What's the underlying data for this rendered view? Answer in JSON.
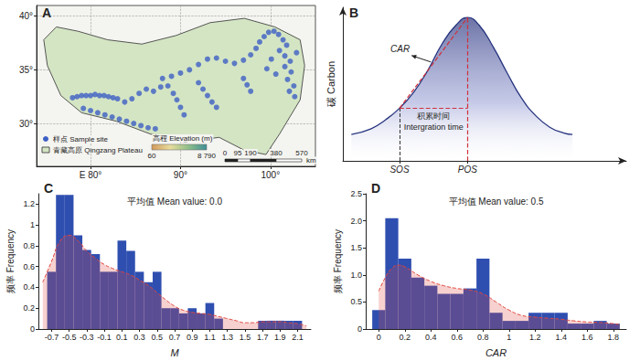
{
  "chart_data": [
    {
      "panel": "A",
      "type": "scatter",
      "xlim": [
        74,
        105
      ],
      "ylim": [
        26,
        41
      ],
      "xticks": [
        {
          "value": 80,
          "label": "E 80°"
        },
        {
          "value": 90,
          "label": "90°"
        },
        {
          "value": 100,
          "label": "100°"
        }
      ],
      "yticks": [
        {
          "value": 30,
          "label": "30°"
        },
        {
          "value": 35,
          "label": "35°"
        },
        {
          "value": 40,
          "label": "40°"
        }
      ],
      "grid": true,
      "legend": "lower left",
      "series": [
        {
          "name": "样点 Sample site",
          "color": "#3d5fc4",
          "marker": "circle",
          "x": [
            78.0,
            78.5,
            79.0,
            79.5,
            80.0,
            80.5,
            81.0,
            81.5,
            82.0,
            82.5,
            83.0,
            79.2,
            80.0,
            80.8,
            81.6,
            82.4,
            83.2,
            84.0,
            84.8,
            85.6,
            86.4,
            87.2,
            83.8,
            84.6,
            85.4,
            86.2,
            87.0,
            87.8,
            88.6,
            89.2,
            89.6,
            90.0,
            90.4,
            88.0,
            89.0,
            90.0,
            91.0,
            92.0,
            93.0,
            94.0,
            95.0,
            96.0,
            97.0,
            97.8,
            98.4,
            92.0,
            92.5,
            93.0,
            93.5,
            94.0,
            97.0,
            97.4,
            97.8,
            98.8,
            99.3,
            99.8,
            100.4,
            100.9,
            101.4,
            101.8,
            101.0,
            101.6,
            102.2,
            101.6,
            102.3,
            101.9,
            102.6,
            102.1,
            102.7,
            100.6,
            99.6,
            100.1,
            102.9
          ],
          "values": [
            32.4,
            32.5,
            32.6,
            32.6,
            32.6,
            32.7,
            32.6,
            32.6,
            32.5,
            32.4,
            32.3,
            31.4,
            31.2,
            31.0,
            30.8,
            30.6,
            30.4,
            30.2,
            30.0,
            29.8,
            29.6,
            29.5,
            32.0,
            32.3,
            32.8,
            33.2,
            33.0,
            33.4,
            33.5,
            32.8,
            32.2,
            31.5,
            30.8,
            34.2,
            34.4,
            34.7,
            35.0,
            35.5,
            36.0,
            36.1,
            35.8,
            35.6,
            35.9,
            36.4,
            37.0,
            33.8,
            33.2,
            32.6,
            32.0,
            31.5,
            34.2,
            33.6,
            33.0,
            37.6,
            38.1,
            38.5,
            38.6,
            38.3,
            37.8,
            37.3,
            36.8,
            36.3,
            35.8,
            35.3,
            34.8,
            34.1,
            33.5,
            33.0,
            32.5,
            34.6,
            35.1,
            36.0,
            36.6
          ]
        }
      ],
      "outline": {
        "name": "青藏高原 Qingzang Plateau",
        "color": "#444444",
        "x": [
          74.8,
          76.2,
          78.6,
          81.9,
          85.7,
          89.5,
          93.3,
          97.1,
          100.5,
          103.3,
          103.8,
          103.3,
          101.0,
          99.5,
          97.1,
          94.3,
          90.5,
          86.7,
          82.9,
          79.0,
          76.7,
          75.2
        ],
        "values": [
          37.8,
          39.0,
          38.6,
          37.8,
          37.4,
          38.2,
          39.4,
          39.8,
          39.0,
          37.8,
          35.4,
          32.2,
          29.0,
          27.1,
          27.5,
          28.7,
          28.3,
          29.0,
          30.2,
          31.0,
          32.6,
          35.4
        ]
      },
      "colorbar": {
        "title": "高程 Elevation (m)",
        "range": [
          60,
          8790
        ],
        "ticks": [
          60,
          {
            "value": 8790,
            "label": "8 790"
          }
        ],
        "colors": [
          "#d29a5c",
          "#e8dc9c",
          "#8fbf8a",
          "#3f8f97"
        ]
      },
      "scale_bar": {
        "ticks": [
          0,
          95,
          190,
          380,
          570
        ],
        "unit": "km"
      }
    },
    {
      "panel": "B",
      "type": "line",
      "x": [
        3,
        10,
        15,
        20,
        25,
        30,
        35,
        40,
        44,
        48,
        53,
        58,
        63,
        68,
        73,
        78,
        81
      ],
      "values": [
        0.18,
        0.22,
        0.28,
        0.36,
        0.47,
        0.62,
        0.8,
        0.93,
        0.98,
        0.93,
        0.78,
        0.6,
        0.43,
        0.31,
        0.23,
        0.19,
        0.18
      ],
      "color": "#27357f",
      "line_style": "solid",
      "xlim": [
        0,
        100
      ],
      "ylim": [
        0,
        1.05
      ],
      "xticks": [
        {
          "value": 20,
          "label": "SOS"
        },
        {
          "value": 44,
          "label": "POS"
        }
      ],
      "yticks": [],
      "ylabel": "碳 Carbon",
      "tick_labels": "x",
      "grid": false,
      "annotations": [
        "CAR",
        "积累时间",
        "Intergration time"
      ]
    },
    {
      "panel": "C",
      "type": "histogram",
      "title": "平均值 Mean value: 0.0",
      "xlabel": "M",
      "ylabel": "频率 Frequency",
      "color": "#2f4fb0",
      "bins": [
        -0.75,
        -0.65,
        -0.55,
        -0.45,
        -0.35,
        -0.25,
        -0.15,
        -0.05,
        0.05,
        0.15,
        0.25,
        0.35,
        0.45,
        0.55,
        0.65,
        0.75,
        0.85,
        0.95,
        1.05,
        1.15,
        1.25,
        1.35,
        1.45,
        1.55,
        1.65,
        1.75,
        1.85,
        1.95,
        2.05,
        2.15
      ],
      "values": [
        0.55,
        1.29,
        1.29,
        0.9,
        0.76,
        0.72,
        0.55,
        0.55,
        0.85,
        0.75,
        0.55,
        0.45,
        0.55,
        0.2,
        0.2,
        0.15,
        0.2,
        0.15,
        0.25,
        0.1,
        0,
        0,
        0,
        0,
        0.08,
        0.08,
        0.08,
        0.08,
        0.08
      ],
      "kde": {
        "color": "#e0463e",
        "line_style": "dashed",
        "x": [
          -0.8,
          -0.7,
          -0.6,
          -0.5,
          -0.4,
          -0.3,
          -0.2,
          -0.1,
          0,
          0.1,
          0.2,
          0.3,
          0.4,
          0.5,
          0.6,
          0.7,
          0.8,
          0.9,
          1.0,
          1.1,
          1.2,
          1.3,
          1.4,
          1.5,
          1.6,
          1.7,
          1.8,
          1.9,
          2.0,
          2.1,
          2.2
        ],
        "values": [
          0.45,
          0.65,
          0.85,
          0.9,
          0.85,
          0.75,
          0.68,
          0.62,
          0.58,
          0.55,
          0.52,
          0.47,
          0.42,
          0.35,
          0.28,
          0.22,
          0.18,
          0.16,
          0.15,
          0.14,
          0.12,
          0.1,
          0.08,
          0.06,
          0.06,
          0.07,
          0.07,
          0.07,
          0.06,
          0.05,
          0.03
        ]
      },
      "xlim": [
        -0.85,
        2.25
      ],
      "ylim": [
        0,
        1.3
      ],
      "xticks": [
        -0.7,
        -0.5,
        -0.3,
        -0.1,
        0.1,
        0.3,
        0.5,
        0.7,
        0.9,
        1.1,
        1.3,
        1.5,
        1.7,
        1.9,
        2.1
      ],
      "yticks": [
        0,
        0.2,
        0.4,
        0.6,
        0.8,
        1,
        1.2
      ],
      "grid": false
    },
    {
      "panel": "D",
      "type": "histogram",
      "title": "平均值 Mean value: 0.5",
      "xlabel": "CAR",
      "ylabel": "频率 Frequency",
      "color": "#2f4fb0",
      "bins": [
        -0.05,
        0.05,
        0.15,
        0.25,
        0.35,
        0.45,
        0.55,
        0.65,
        0.75,
        0.85,
        0.95,
        1.05,
        1.15,
        1.25,
        1.35,
        1.45,
        1.55,
        1.65,
        1.75,
        1.85
      ],
      "values": [
        0.35,
        2.05,
        1.3,
        0.95,
        0.8,
        0.65,
        0.65,
        0.75,
        1.3,
        0.3,
        0.15,
        0.15,
        0.3,
        0.3,
        0.3,
        0.1,
        0.1,
        0.15,
        0.1
      ],
      "kde": {
        "color": "#e0463e",
        "line_style": "dashed",
        "x": [
          0,
          0.05,
          0.1,
          0.15,
          0.2,
          0.3,
          0.4,
          0.5,
          0.6,
          0.7,
          0.8,
          0.9,
          1.0,
          1.1,
          1.2,
          1.3,
          1.4,
          1.5,
          1.6,
          1.7,
          1.8,
          1.85
        ],
        "values": [
          0.7,
          0.95,
          1.12,
          1.18,
          1.15,
          1.0,
          0.88,
          0.8,
          0.75,
          0.72,
          0.65,
          0.5,
          0.35,
          0.25,
          0.22,
          0.2,
          0.18,
          0.15,
          0.13,
          0.12,
          0.1,
          0.08
        ]
      },
      "xlim": [
        -0.1,
        1.9
      ],
      "ylim": [
        0,
        2.5
      ],
      "xticks": [
        0,
        0.2,
        0.4,
        0.6,
        0.8,
        1,
        1.2,
        1.4,
        1.6,
        1.8
      ],
      "yticks": [
        0,
        0.5,
        {
          "value": 1,
          "label": "1.0"
        },
        1.5,
        {
          "value": 2,
          "label": "2.0"
        },
        2.5
      ],
      "grid": false
    }
  ]
}
